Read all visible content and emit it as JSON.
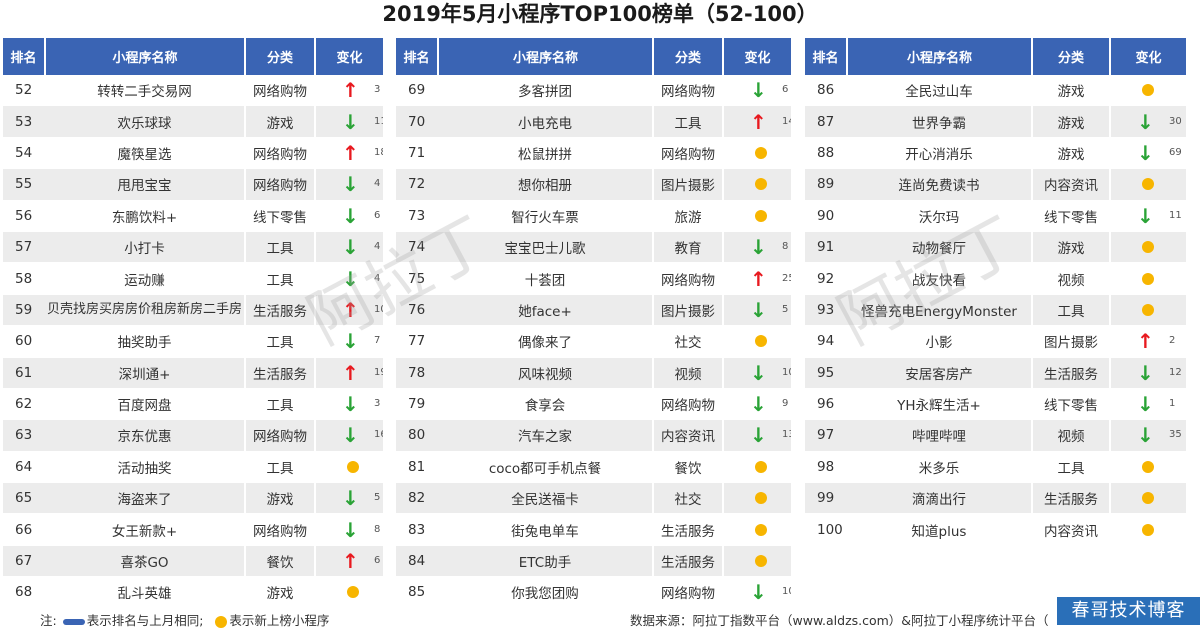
{
  "title": "2019年5月小程序TOP100榜单（52-100）",
  "headers": {
    "rank": "排名",
    "name": "小程序名称",
    "category": "分类",
    "change": "变化"
  },
  "colors": {
    "header_bg": "#3a64b4",
    "up": "#e8191f",
    "down": "#2aa336",
    "new": "#f7b500"
  },
  "icons": {
    "up": "up-arrow-icon",
    "down": "down-arrow-icon",
    "new": "new-dot-icon"
  },
  "watermark": "阿拉丁",
  "columns": [
    [
      {
        "rank": "52",
        "name": "转转二手交易网",
        "category": "网络购物",
        "dir": "up",
        "change": "3"
      },
      {
        "rank": "53",
        "name": "欢乐球球",
        "category": "游戏",
        "dir": "down",
        "change": "11"
      },
      {
        "rank": "54",
        "name": "魔筷星选",
        "category": "网络购物",
        "dir": "up",
        "change": "18"
      },
      {
        "rank": "55",
        "name": "甩甩宝宝",
        "category": "网络购物",
        "dir": "down",
        "change": "4"
      },
      {
        "rank": "56",
        "name": "东鹏饮料+",
        "category": "线下零售",
        "dir": "down",
        "change": "6"
      },
      {
        "rank": "57",
        "name": "小打卡",
        "category": "工具",
        "dir": "down",
        "change": "4"
      },
      {
        "rank": "58",
        "name": "运动赚",
        "category": "工具",
        "dir": "down",
        "change": "4"
      },
      {
        "rank": "59",
        "name": "贝壳找房买房房价租房新房二手房",
        "category": "生活服务",
        "dir": "up",
        "change": "10"
      },
      {
        "rank": "60",
        "name": "抽奖助手",
        "category": "工具",
        "dir": "down",
        "change": "7"
      },
      {
        "rank": "61",
        "name": "深圳通+",
        "category": "生活服务",
        "dir": "up",
        "change": "19"
      },
      {
        "rank": "62",
        "name": "百度网盘",
        "category": "工具",
        "dir": "down",
        "change": "3"
      },
      {
        "rank": "63",
        "name": "京东优惠",
        "category": "网络购物",
        "dir": "down",
        "change": "16"
      },
      {
        "rank": "64",
        "name": "活动抽奖",
        "category": "工具",
        "dir": "new",
        "change": ""
      },
      {
        "rank": "65",
        "name": "海盗来了",
        "category": "游戏",
        "dir": "down",
        "change": "5"
      },
      {
        "rank": "66",
        "name": "女王新款+",
        "category": "网络购物",
        "dir": "down",
        "change": "8"
      },
      {
        "rank": "67",
        "name": "喜茶GO",
        "category": "餐饮",
        "dir": "up",
        "change": "6"
      },
      {
        "rank": "68",
        "name": "乱斗英雄",
        "category": "游戏",
        "dir": "new",
        "change": ""
      }
    ],
    [
      {
        "rank": "69",
        "name": "多客拼团",
        "category": "网络购物",
        "dir": "down",
        "change": "6"
      },
      {
        "rank": "70",
        "name": "小电充电",
        "category": "工具",
        "dir": "up",
        "change": "14"
      },
      {
        "rank": "71",
        "name": "松鼠拼拼",
        "category": "网络购物",
        "dir": "new",
        "change": ""
      },
      {
        "rank": "72",
        "name": "想你相册",
        "category": "图片摄影",
        "dir": "new",
        "change": ""
      },
      {
        "rank": "73",
        "name": "智行火车票",
        "category": "旅游",
        "dir": "new",
        "change": ""
      },
      {
        "rank": "74",
        "name": "宝宝巴士儿歌",
        "category": "教育",
        "dir": "down",
        "change": "8"
      },
      {
        "rank": "75",
        "name": "十荟团",
        "category": "网络购物",
        "dir": "up",
        "change": "25"
      },
      {
        "rank": "76",
        "name": "她face+",
        "category": "图片摄影",
        "dir": "down",
        "change": "5"
      },
      {
        "rank": "77",
        "name": "偶像来了",
        "category": "社交",
        "dir": "new",
        "change": ""
      },
      {
        "rank": "78",
        "name": "风味视频",
        "category": "视频",
        "dir": "down",
        "change": "10"
      },
      {
        "rank": "79",
        "name": "食享会",
        "category": "网络购物",
        "dir": "down",
        "change": "9"
      },
      {
        "rank": "80",
        "name": "汽车之家",
        "category": "内容资讯",
        "dir": "down",
        "change": "13"
      },
      {
        "rank": "81",
        "name": "coco都可手机点餐",
        "category": "餐饮",
        "dir": "new",
        "change": ""
      },
      {
        "rank": "82",
        "name": "全民送福卡",
        "category": "社交",
        "dir": "new",
        "change": ""
      },
      {
        "rank": "83",
        "name": "街兔电单车",
        "category": "生活服务",
        "dir": "new",
        "change": ""
      },
      {
        "rank": "84",
        "name": "ETC助手",
        "category": "生活服务",
        "dir": "new",
        "change": ""
      },
      {
        "rank": "85",
        "name": "你我您团购",
        "category": "网络购物",
        "dir": "down",
        "change": "10"
      }
    ],
    [
      {
        "rank": "86",
        "name": "全民过山车",
        "category": "游戏",
        "dir": "new",
        "change": ""
      },
      {
        "rank": "87",
        "name": "世界争霸",
        "category": "游戏",
        "dir": "down",
        "change": "30"
      },
      {
        "rank": "88",
        "name": "开心消消乐",
        "category": "游戏",
        "dir": "down",
        "change": "69"
      },
      {
        "rank": "89",
        "name": "连尚免费读书",
        "category": "内容资讯",
        "dir": "new",
        "change": ""
      },
      {
        "rank": "90",
        "name": "沃尔玛",
        "category": "线下零售",
        "dir": "down",
        "change": "11"
      },
      {
        "rank": "91",
        "name": "动物餐厅",
        "category": "游戏",
        "dir": "new",
        "change": ""
      },
      {
        "rank": "92",
        "name": "战友快看",
        "category": "视频",
        "dir": "new",
        "change": ""
      },
      {
        "rank": "93",
        "name": "怪兽充电EnergyMonster",
        "category": "工具",
        "dir": "new",
        "change": ""
      },
      {
        "rank": "94",
        "name": "小影",
        "category": "图片摄影",
        "dir": "up",
        "change": "2"
      },
      {
        "rank": "95",
        "name": "安居客房产",
        "category": "生活服务",
        "dir": "down",
        "change": "12"
      },
      {
        "rank": "96",
        "name": "YH永辉生活+",
        "category": "线下零售",
        "dir": "down",
        "change": "1"
      },
      {
        "rank": "97",
        "name": "哔哩哔哩",
        "category": "视频",
        "dir": "down",
        "change": "35"
      },
      {
        "rank": "98",
        "name": "米多乐",
        "category": "工具",
        "dir": "new",
        "change": ""
      },
      {
        "rank": "99",
        "name": "滴滴出行",
        "category": "生活服务",
        "dir": "new",
        "change": ""
      },
      {
        "rank": "100",
        "name": "知道plus",
        "category": "内容资讯",
        "dir": "new",
        "change": ""
      }
    ]
  ],
  "footnote": {
    "prefix": "注:",
    "same_text": "表示排名与上月相同;",
    "new_text": "表示新上榜小程序"
  },
  "source": "数据来源：阿拉丁指数平台（www.aldzs.com）&阿拉丁小程序统计平台（",
  "badge": "春哥技术博客"
}
